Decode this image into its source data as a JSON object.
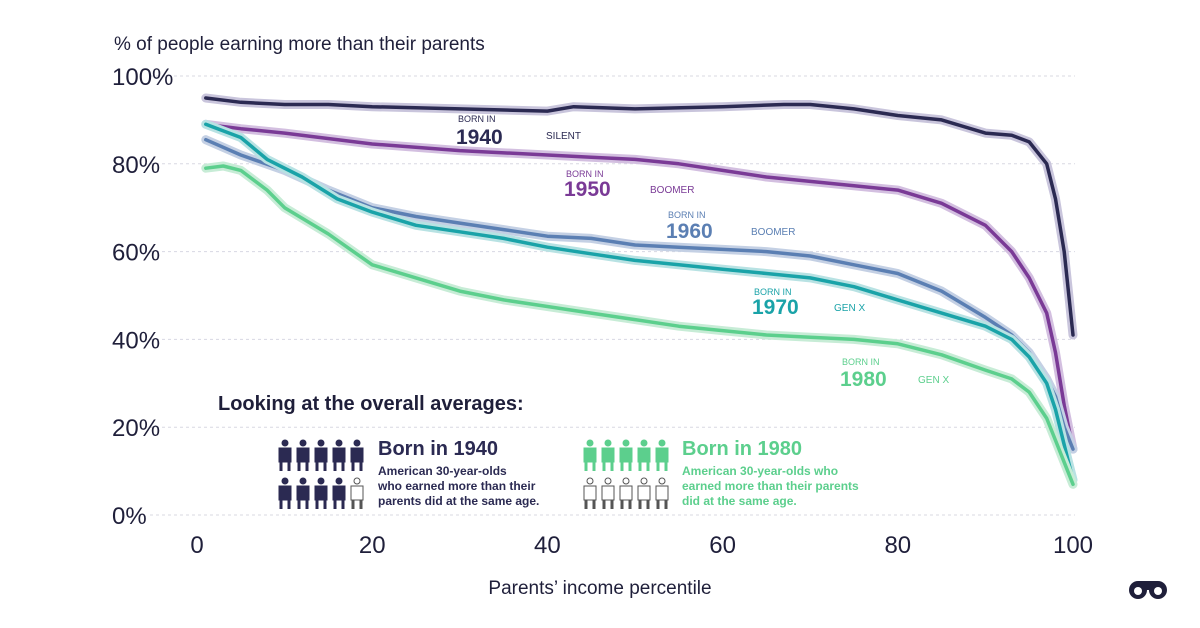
{
  "chart_data": {
    "type": "line",
    "ylabel": "% of people earning more than their parents",
    "xlabel": "Parents’ income percentile",
    "ylim": [
      0,
      100
    ],
    "xlim": [
      0,
      100
    ],
    "yticks": [
      "0%",
      "20%",
      "40%",
      "60%",
      "80%",
      "100%"
    ],
    "xticks": [
      "0",
      "20",
      "40",
      "60",
      "80",
      "100"
    ],
    "grid": true,
    "series": [
      {
        "name": "1940",
        "tag": "SILENT",
        "born_label": "BORN IN",
        "color": "#2b2a52",
        "halo": "#c9c5dc",
        "x": [
          1,
          5,
          10,
          15,
          20,
          30,
          40,
          43,
          50,
          60,
          67,
          70,
          75,
          80,
          85,
          90,
          93,
          95,
          97,
          98,
          99,
          100
        ],
        "y": [
          95,
          94,
          93.5,
          93.5,
          93,
          92.5,
          92,
          93,
          92.5,
          93,
          93.5,
          93.5,
          92.5,
          91,
          90,
          87,
          86.5,
          85,
          80,
          72,
          60,
          41
        ]
      },
      {
        "name": "1950",
        "tag": "BOOMER",
        "born_label": "BORN IN",
        "color": "#7a3a96",
        "halo": "#d3bfe0",
        "x": [
          1,
          5,
          10,
          20,
          30,
          40,
          45,
          50,
          55,
          60,
          65,
          70,
          75,
          80,
          85,
          90,
          93,
          95,
          97,
          98,
          99,
          100
        ],
        "y": [
          89,
          88,
          87,
          84.5,
          83,
          82,
          81.5,
          81,
          80,
          78.5,
          77,
          76,
          75,
          74,
          71,
          66,
          60,
          54,
          46,
          37,
          25,
          15
        ]
      },
      {
        "name": "1960",
        "tag": "BOOMER",
        "born_label": "BORN IN",
        "color": "#5b7fb3",
        "halo": "#c4d0e4",
        "x": [
          1,
          5,
          10,
          15,
          20,
          25,
          30,
          35,
          40,
          45,
          50,
          55,
          60,
          65,
          70,
          75,
          80,
          85,
          90,
          93,
          95,
          97,
          98,
          99,
          100
        ],
        "y": [
          85.5,
          82,
          78.5,
          74,
          70,
          68,
          66.5,
          65,
          63.5,
          63,
          61.5,
          61,
          60.5,
          60,
          59,
          57,
          55,
          51,
          45,
          41,
          37,
          31,
          27,
          20,
          15
        ]
      },
      {
        "name": "1970",
        "tag": "GEN X",
        "born_label": "BORN IN",
        "color": "#1aa3a8",
        "halo": "#b8e2e3",
        "x": [
          1,
          5,
          8,
          12,
          16,
          20,
          25,
          30,
          35,
          40,
          45,
          50,
          55,
          60,
          65,
          70,
          75,
          80,
          85,
          90,
          93,
          95,
          97,
          98,
          99,
          100
        ],
        "y": [
          89,
          86,
          81,
          77,
          72,
          69,
          66,
          64.5,
          63,
          61,
          59.5,
          58,
          57,
          56,
          55,
          54,
          52,
          49,
          46,
          43,
          40,
          36,
          30,
          24,
          16,
          8
        ]
      },
      {
        "name": "1980",
        "tag": "GEN X",
        "born_label": "BORN IN",
        "color": "#5ccf8d",
        "halo": "#c7ecd6",
        "x": [
          1,
          3,
          5,
          8,
          10,
          15,
          20,
          25,
          30,
          35,
          40,
          45,
          50,
          55,
          60,
          65,
          70,
          75,
          80,
          85,
          90,
          93,
          95,
          97,
          98,
          99,
          100
        ],
        "y": [
          79,
          79.5,
          78.5,
          74,
          70,
          64,
          57,
          54,
          51,
          49,
          47.5,
          46,
          44.5,
          43,
          42,
          41,
          40.5,
          40,
          39,
          36.5,
          33,
          31,
          28,
          22,
          17,
          12,
          7
        ]
      }
    ]
  },
  "averages": {
    "heading": "Looking at the overall averages:",
    "items": [
      {
        "title": "Born in 1940",
        "desc_line1": "American 30-year-olds",
        "desc_line2": "who earned more than their",
        "desc_line3": "parents did at the same age.",
        "color": "#2b2a52",
        "filled": 9,
        "total": 10
      },
      {
        "title": "Born in 1980",
        "desc_line1": "American 30-year-olds who",
        "desc_line2": "earned more than their parents",
        "desc_line3": "did at the same age.",
        "color": "#5ccf8d",
        "filled": 5,
        "total": 10
      }
    ]
  },
  "colors": {
    "text": "#1f1f3a",
    "grid": "#d8d8e2"
  },
  "icons": {
    "brand": "binoculars-icon",
    "person": "person-icon"
  }
}
